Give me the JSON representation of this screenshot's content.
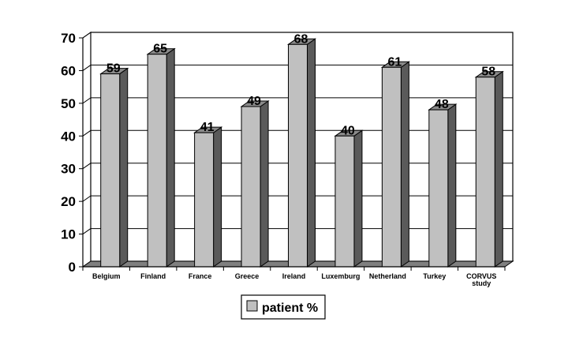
{
  "chart_data": {
    "type": "bar",
    "style": "3d-column",
    "categories": [
      "Belgium",
      "Finland",
      "France",
      "Greece",
      "Ireland",
      "Luxemburg",
      "Netherland",
      "Turkey",
      "CORVUS\nstudy"
    ],
    "series": [
      {
        "name": "patient %",
        "values": [
          59,
          65,
          41,
          49,
          68,
          40,
          61,
          48,
          58
        ]
      }
    ],
    "ylim": [
      0,
      70
    ],
    "yticks": [
      0,
      10,
      20,
      30,
      40,
      50,
      60,
      70
    ],
    "grid": true,
    "legend_position": "bottom",
    "colors": {
      "bar_front": "#c0c0c0",
      "bar_side": "#5a5a5a",
      "bar_top": "#8a8a8a",
      "floor": "#808080"
    }
  }
}
